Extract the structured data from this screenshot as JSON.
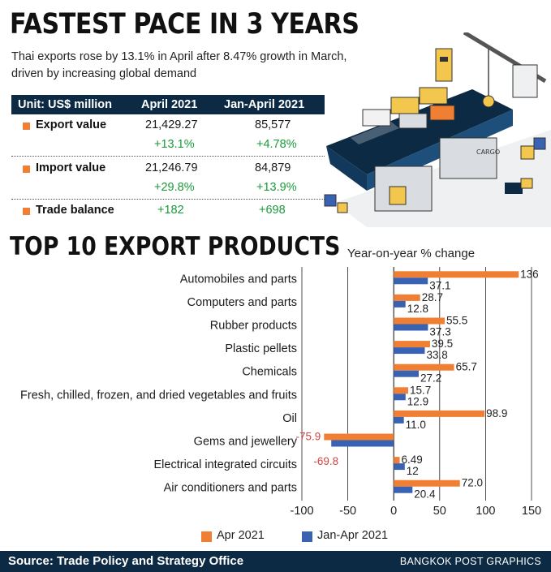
{
  "header": {
    "title": "FASTEST PACE IN 3 YEARS",
    "subtitle": "Thai exports rose by 13.1% in April after 8.47% growth in March, driven by increasing global demand"
  },
  "table": {
    "unit_label": "Unit: US$ million",
    "col1": "April 2021",
    "col2": "Jan-April 2021",
    "rows": [
      {
        "label": "Export value",
        "v1": "21,429.27",
        "v2": "85,577",
        "g1": "+13.1%",
        "g2": "+4.78%"
      },
      {
        "label": "Import value",
        "v1": "21,246.79",
        "v2": "84,879",
        "g1": "+29.8%",
        "g2": "+13.9%"
      },
      {
        "label": "Trade balance",
        "v1": "+182",
        "v2": "+698"
      }
    ]
  },
  "illustration": {
    "crate_label": "CARGO"
  },
  "section": {
    "title": "TOP 10 EXPORT PRODUCTS",
    "note": "Year-on-year % change"
  },
  "chart_data": {
    "type": "bar",
    "orientation": "horizontal",
    "categories": [
      "Automobiles and parts",
      "Computers and parts",
      "Rubber products",
      "Plastic pellets",
      "Chemicals",
      "Fresh, chilled, frozen, and dried vegetables and fruits",
      "Oil",
      "Gems and jewellery",
      "Electrical integrated circuits",
      "Air conditioners and parts"
    ],
    "series": [
      {
        "name": "Apr 2021",
        "color": "#f07f33",
        "values": [
          136,
          28.7,
          55.5,
          39.5,
          65.7,
          15.7,
          98.9,
          -75.9,
          6.49,
          72.0
        ],
        "labels": [
          "136",
          "28.7",
          "55.5",
          "39.5",
          "65.7",
          "15.7",
          "98.9",
          "-75.9",
          "6.49",
          "72.0"
        ]
      },
      {
        "name": "Jan-Apr 2021",
        "color": "#3a62b3",
        "values": [
          37.1,
          12.8,
          37.3,
          33.8,
          27.2,
          12.9,
          11.0,
          -68.0,
          12,
          20.4
        ],
        "labels": [
          "37.1",
          "12.8",
          "37.3",
          "33.8",
          "27.2",
          "12.9",
          "11.0",
          "",
          "12",
          "20.4"
        ]
      }
    ],
    "extra_labels": [
      {
        "category_index": 8,
        "text": "-69.8"
      }
    ],
    "xlim": [
      -100,
      150
    ],
    "xticks": [
      "-100",
      "-50",
      "0",
      "50",
      "100",
      "150"
    ],
    "xtick_values": [
      -100,
      -50,
      0,
      50,
      100,
      150
    ],
    "grid": true,
    "negative_label_color": "#d64545",
    "legend": "bottom"
  },
  "footer": {
    "source": "Source: Trade Policy and Strategy Office",
    "credit": "BANGKOK POST GRAPHICS"
  }
}
